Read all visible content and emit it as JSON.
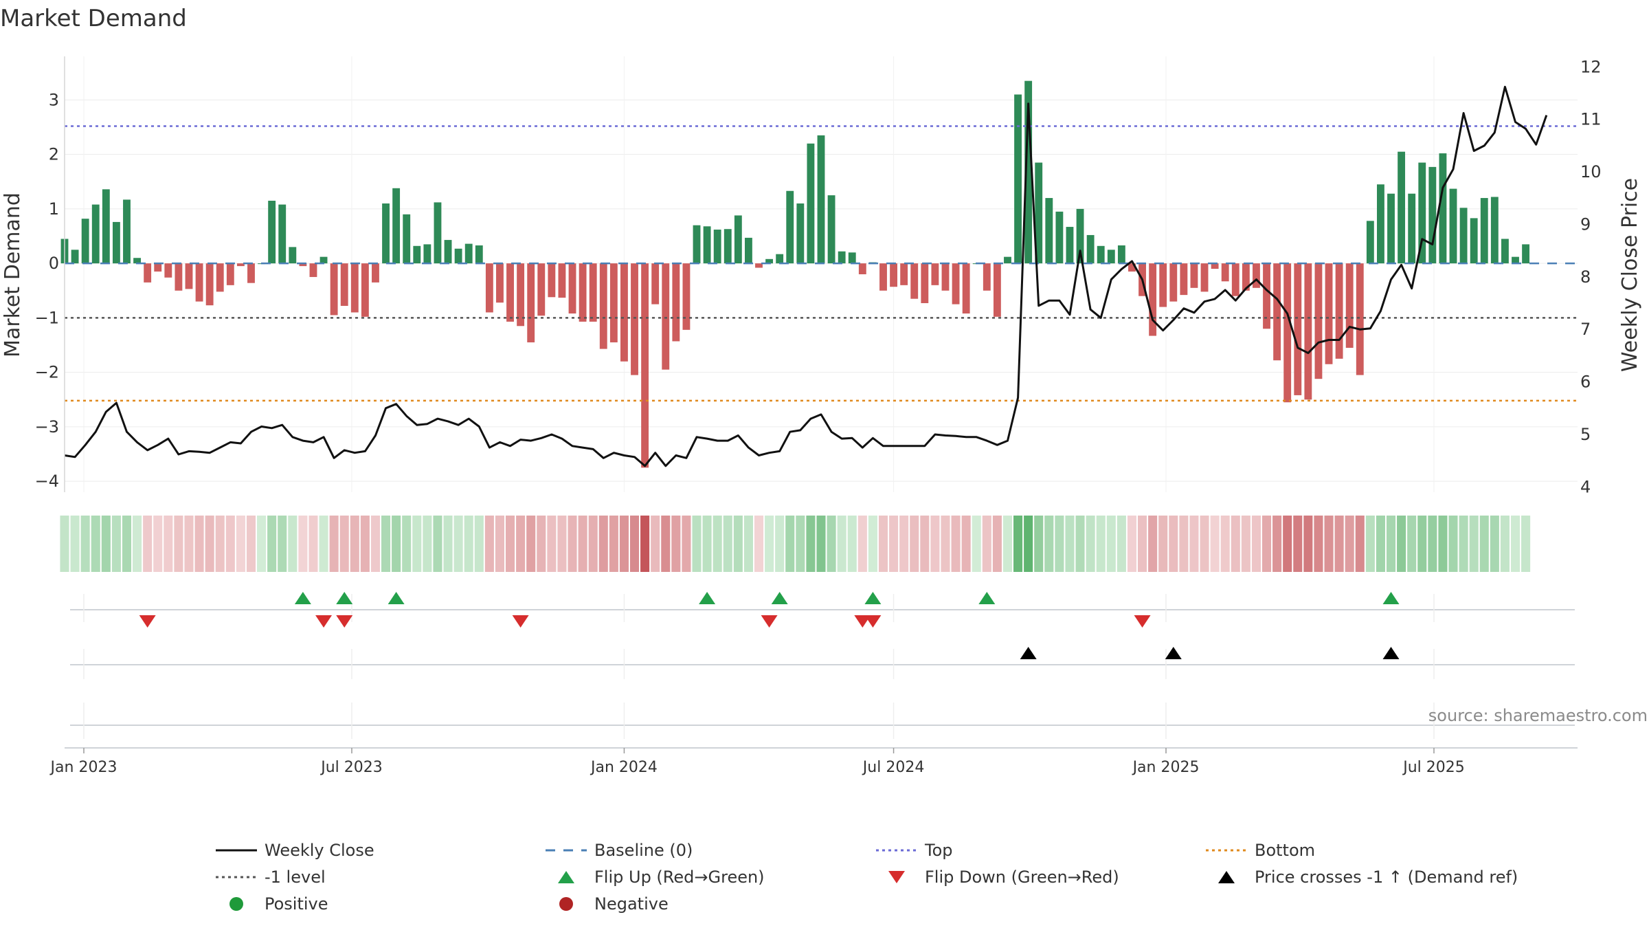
{
  "chart_data": {
    "type": "bar",
    "title": "Market Demand",
    "ylabel": "Market Demand",
    "y2label": "Weekly Close Price",
    "ylim": [
      -4.2,
      3.8
    ],
    "y2lim": [
      3.9,
      12.2
    ],
    "yticks": [
      3,
      2,
      1,
      0,
      -1,
      -2,
      -3,
      -4
    ],
    "ytick_labels": [
      "3",
      "2",
      "1",
      "0",
      "−1",
      "−2",
      "−3",
      "−4"
    ],
    "y2ticks": [
      12,
      11,
      10,
      9,
      8,
      7,
      6,
      5,
      4
    ],
    "y2tick_labels": [
      "12",
      "11",
      "10",
      "9",
      "8",
      "7",
      "6",
      "5",
      "4"
    ],
    "x_range": [
      "2022-12-19",
      "2025-10-06"
    ],
    "x_ticks": [
      {
        "date": "2023-01-01",
        "label": "Jan 2023"
      },
      {
        "date": "2023-07-01",
        "label": "Jul 2023"
      },
      {
        "date": "2024-01-01",
        "label": "Jan 2024"
      },
      {
        "date": "2024-07-01",
        "label": "Jul 2024"
      },
      {
        "date": "2025-01-01",
        "label": "Jan 2025"
      },
      {
        "date": "2025-07-01",
        "label": "Jul 2025"
      }
    ],
    "grid": true,
    "reference_lines": {
      "top": 2.52,
      "minus_one": -1.0,
      "bottom": -2.52,
      "baseline": 0
    },
    "first_week": "2022-12-19",
    "demand": [
      0.45,
      0.25,
      0.82,
      1.08,
      1.36,
      0.76,
      1.17,
      0.1,
      -0.35,
      -0.15,
      -0.26,
      -0.5,
      -0.47,
      -0.7,
      -0.77,
      -0.52,
      -0.4,
      -0.05,
      -0.36,
      0,
      1.15,
      1.08,
      0.3,
      -0.05,
      -0.25,
      0.12,
      -0.95,
      -0.78,
      -0.9,
      -0.98,
      -0.35,
      1.1,
      1.38,
      0.9,
      0.32,
      0.35,
      1.12,
      0.43,
      0.27,
      0.36,
      0.33,
      -0.9,
      -0.72,
      -1.07,
      -1.15,
      -1.45,
      -0.96,
      -0.62,
      -0.63,
      -0.92,
      -1.07,
      -1.07,
      -1.57,
      -1.45,
      -1.8,
      -2.05,
      -3.75,
      -0.75,
      -1.95,
      -1.43,
      -1.22,
      0.7,
      0.68,
      0.62,
      0.63,
      0.88,
      0.47,
      -0.08,
      0.08,
      0.17,
      1.33,
      1.1,
      2.2,
      2.35,
      1.25,
      0.22,
      0.2,
      -0.2,
      0.02,
      -0.5,
      -0.43,
      -0.4,
      -0.65,
      -0.73,
      -0.4,
      -0.5,
      -0.75,
      -0.92,
      0,
      -0.5,
      -0.98,
      0.12,
      3.1,
      3.35,
      1.85,
      1.2,
      0.95,
      0.67,
      1.0,
      0.52,
      0.32,
      0.25,
      0.33,
      -0.15,
      -0.6,
      -1.33,
      -0.8,
      -0.7,
      -0.58,
      -0.45,
      -0.52,
      -0.1,
      -0.33,
      -0.6,
      -0.5,
      -0.45,
      -1.2,
      -1.78,
      -2.55,
      -2.42,
      -2.5,
      -2.12,
      -1.85,
      -1.75,
      -1.55,
      -2.05,
      0.78,
      1.45,
      1.28,
      2.05,
      1.28,
      1.85,
      1.77,
      2.02,
      1.37,
      1.02,
      0.83,
      1.2,
      1.22,
      0.45,
      0.12,
      0.35
    ],
    "weekly_close": [
      4.6,
      4.57,
      4.8,
      5.05,
      5.43,
      5.6,
      5.05,
      4.85,
      4.7,
      4.8,
      4.92,
      4.62,
      4.68,
      4.67,
      4.65,
      4.75,
      4.85,
      4.83,
      5.05,
      5.15,
      5.12,
      5.18,
      4.95,
      4.88,
      4.85,
      4.95,
      4.55,
      4.7,
      4.65,
      4.68,
      4.98,
      5.5,
      5.58,
      5.35,
      5.18,
      5.2,
      5.3,
      5.25,
      5.18,
      5.3,
      5.15,
      4.75,
      4.85,
      4.78,
      4.9,
      4.88,
      4.93,
      5.0,
      4.92,
      4.78,
      4.75,
      4.72,
      4.55,
      4.65,
      4.6,
      4.57,
      4.4,
      4.65,
      4.4,
      4.6,
      4.55,
      4.95,
      4.92,
      4.88,
      4.88,
      4.98,
      4.75,
      4.6,
      4.65,
      4.68,
      5.05,
      5.08,
      5.3,
      5.38,
      5.05,
      4.92,
      4.93,
      4.75,
      4.93,
      4.78,
      4.78,
      4.78,
      4.78,
      4.78,
      5.0,
      4.98,
      4.97,
      4.95,
      4.95,
      4.88,
      4.8,
      4.88,
      5.7,
      11.3,
      7.45,
      7.55,
      7.55,
      7.28,
      8.5,
      7.38,
      7.22,
      7.95,
      8.15,
      8.3,
      7.95,
      7.18,
      6.98,
      7.18,
      7.4,
      7.32,
      7.53,
      7.58,
      7.75,
      7.55,
      7.78,
      7.95,
      7.75,
      7.58,
      7.3,
      6.65,
      6.55,
      6.75,
      6.8,
      6.8,
      7.05,
      7.0,
      7.02,
      7.35,
      7.95,
      8.23,
      7.78,
      8.72,
      8.62,
      9.7,
      10.05,
      11.12,
      10.4,
      10.5,
      10.75,
      11.62,
      10.95,
      10.82,
      10.52,
      11.08
    ],
    "heat_strip_colors": {
      "positive_strong": "#5ab16b",
      "positive_weak": "#d2ecd6",
      "negative_strong": "#c4555a",
      "negative_weak": "#f3d6d7"
    },
    "flip_up": [
      "2023-05-29",
      "2023-06-26",
      "2023-07-31",
      "2024-02-26",
      "2024-04-15",
      "2024-06-17",
      "2024-09-02",
      "2025-06-02"
    ],
    "flip_down": [
      "2023-02-13",
      "2023-06-12",
      "2023-06-26",
      "2023-10-23",
      "2024-04-08",
      "2024-06-10",
      "2024-06-17",
      "2024-12-16"
    ],
    "price_cross_up": [
      "2024-09-30",
      "2025-01-06",
      "2025-06-02"
    ],
    "legend": [
      {
        "label": "Weekly Close",
        "style": "line",
        "color": "#111111"
      },
      {
        "label": "Baseline (0)",
        "style": "dash",
        "color": "#4a7fb5"
      },
      {
        "label": "Top",
        "style": "dot",
        "color": "#6b6bd6"
      },
      {
        "label": "Bottom",
        "style": "dot",
        "color": "#e08a1e"
      },
      {
        "label": "-1 level",
        "style": "dot",
        "color": "#555555"
      },
      {
        "label": "Flip Up (Red→Green)",
        "style": "tri-up",
        "color": "#23a04a"
      },
      {
        "label": "Flip Down (Green→Red)",
        "style": "tri-down",
        "color": "#d62d2d"
      },
      {
        "label": "Price crosses -1 ↑ (Demand ref)",
        "style": "tri-up",
        "color": "#000000"
      },
      {
        "label": "Positive",
        "style": "circle",
        "color": "#1f9a3a"
      },
      {
        "label": "Negative",
        "style": "circle",
        "color": "#b02424"
      }
    ],
    "colors": {
      "positive": "#2e8a57",
      "negative": "#cd5c5c",
      "price": "#111111"
    },
    "source": "source: sharemaestro.com"
  }
}
